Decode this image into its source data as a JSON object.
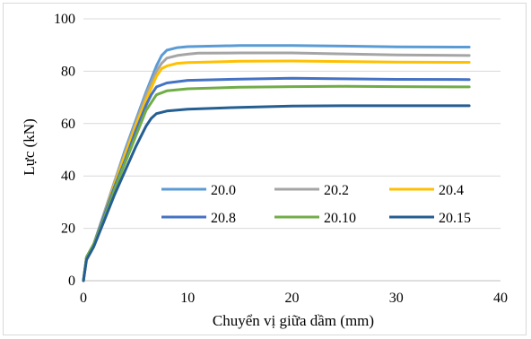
{
  "chart_data": {
    "type": "line",
    "title": "",
    "xlabel": "Chuyển vị giữa dầm (mm)",
    "ylabel": "Lực (kN)",
    "xlim": [
      0,
      40
    ],
    "ylim": [
      0,
      100
    ],
    "xticks": [
      0,
      10,
      20,
      30,
      40
    ],
    "yticks": [
      0,
      20,
      40,
      60,
      80,
      100
    ],
    "grid": "horizontal",
    "legend_position": "center-right",
    "series": [
      {
        "name": "20.0",
        "color": "#5B9BD5",
        "x": [
          0,
          0.3,
          1,
          2,
          3,
          4,
          5,
          6,
          7,
          7.5,
          8,
          9,
          10,
          15,
          20,
          25,
          30,
          37
        ],
        "y": [
          0,
          9,
          14,
          26,
          38,
          50,
          61,
          72,
          82,
          86,
          88,
          89,
          89.4,
          89.8,
          89.8,
          89.6,
          89.3,
          89.2
        ]
      },
      {
        "name": "20.2",
        "color": "#A5A5A5",
        "x": [
          0,
          0.3,
          1,
          2,
          3,
          4,
          5,
          6,
          7,
          7.5,
          8,
          9,
          10,
          11,
          15,
          20,
          25,
          30,
          37
        ],
        "y": [
          0,
          9,
          14,
          26,
          38,
          49,
          60,
          71,
          80,
          83,
          85,
          86,
          86.5,
          86.9,
          87,
          87,
          86.6,
          86.2,
          86
        ]
      },
      {
        "name": "20.4",
        "color": "#FFC000",
        "x": [
          0,
          0.3,
          1,
          2,
          3,
          4,
          5,
          6,
          7,
          7.5,
          8,
          9,
          10,
          15,
          20,
          25,
          30,
          37
        ],
        "y": [
          0,
          9,
          14,
          25,
          37,
          48,
          59,
          69,
          78,
          81,
          82,
          83,
          83.3,
          83.8,
          83.9,
          83.7,
          83.5,
          83.4
        ]
      },
      {
        "name": "20.8",
        "color": "#4472C4",
        "x": [
          0,
          0.3,
          1,
          2,
          3,
          4,
          5,
          6,
          6.5,
          7,
          8,
          10,
          15,
          20,
          25,
          30,
          37
        ],
        "y": [
          0,
          9,
          14,
          25,
          36,
          46,
          57,
          67,
          71,
          74,
          75.5,
          76.5,
          77,
          77.3,
          77.1,
          76.9,
          76.8
        ]
      },
      {
        "name": "20.10",
        "color": "#70AD47",
        "x": [
          0,
          0.3,
          1,
          2,
          3,
          4,
          5,
          6,
          6.5,
          7,
          8,
          10,
          15,
          20,
          25,
          30,
          37
        ],
        "y": [
          0,
          9,
          14,
          24,
          35,
          45,
          55,
          65,
          68,
          71,
          72.5,
          73.3,
          73.9,
          74.1,
          74.2,
          74.1,
          74
        ]
      },
      {
        "name": "20.15",
        "color": "#255E91",
        "x": [
          0,
          0.3,
          1,
          2,
          3,
          4,
          5,
          6,
          6.5,
          7,
          8,
          10,
          15,
          20,
          25,
          30,
          37
        ],
        "y": [
          0,
          8,
          13,
          23,
          33,
          42,
          51,
          59,
          62,
          63.8,
          64.8,
          65.5,
          66.2,
          66.7,
          66.8,
          66.8,
          66.8
        ]
      }
    ]
  }
}
